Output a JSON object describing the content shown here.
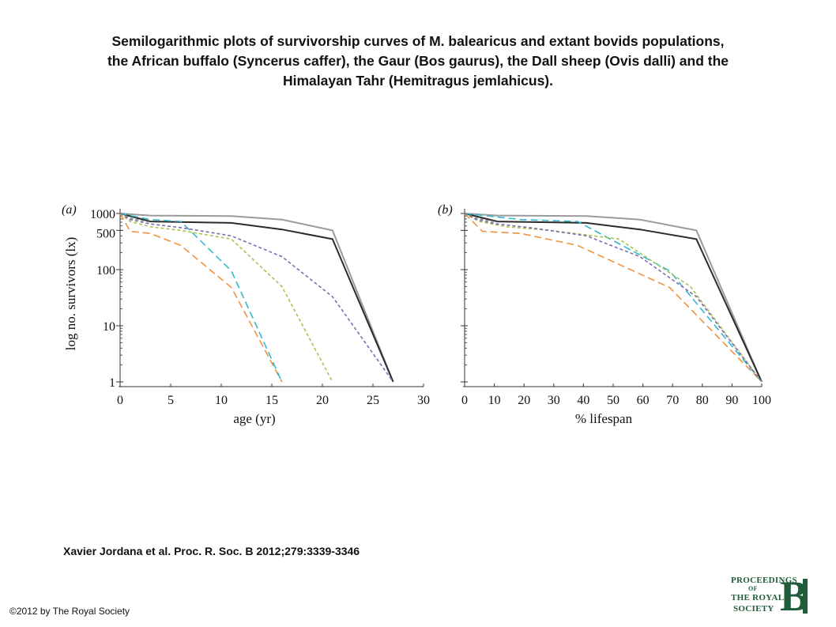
{
  "title_lines": [
    "Semilogarithmic plots of survivorship curves of M. balearicus and extant bovids populations,",
    "the African buffalo (Syncerus caffer), the Gaur (Bos gaurus), the Dall sheep (Ovis dalli) and the",
    "Himalayan Tahr (Hemitragus jemlahicus)."
  ],
  "citation": "Xavier Jordana et al. Proc. R. Soc. B 2012;279:3339-3346",
  "copyright": "©2012 by The Royal Society",
  "logo": {
    "line1": "PROCEEDINGS",
    "line2": "OF",
    "line3": "THE ROYAL",
    "line4": "SOCIETY",
    "letter": "B"
  },
  "colors": {
    "gray": "#9a9a9a",
    "black": "#2b2b2b",
    "orange": "#f0923f",
    "cyan": "#33b8d0",
    "green": "#a6c34f",
    "purple": "#7d6eae",
    "gray_dashed": "#8a8a8a",
    "axis": "#333333"
  },
  "chart_data": [
    {
      "type": "line",
      "panel_label": "(a)",
      "xlabel": "age (yr)",
      "ylabel": "log no. survivors (lx)",
      "xlim": [
        0,
        30
      ],
      "ylim": [
        1,
        1000
      ],
      "yscale": "log",
      "x_ticks": [
        0,
        5,
        10,
        15,
        20,
        25,
        30
      ],
      "x_tick_labels": [
        "0",
        "5",
        "10",
        "15",
        "20",
        "25",
        "30"
      ],
      "y_ticks": [
        1,
        10,
        100,
        500,
        1000
      ],
      "y_tick_labels": [
        "1",
        "10",
        "100",
        "500",
        "1000"
      ],
      "series": [
        {
          "color_key": "gray",
          "dash": "solid",
          "x": [
            0,
            3,
            11,
            16,
            21,
            27
          ],
          "y": [
            1000,
            920,
            900,
            780,
            500,
            1
          ]
        },
        {
          "color_key": "black",
          "dash": "solid",
          "x": [
            0,
            3,
            11,
            16,
            21,
            27
          ],
          "y": [
            1000,
            720,
            680,
            520,
            350,
            1
          ]
        },
        {
          "color_key": "orange",
          "dash": "dashed",
          "x": [
            0,
            1,
            3,
            6,
            11,
            16
          ],
          "y": [
            1000,
            480,
            440,
            270,
            48,
            1
          ]
        },
        {
          "color_key": "cyan",
          "dash": "dashed",
          "x": [
            0,
            3,
            6,
            11,
            16
          ],
          "y": [
            1000,
            780,
            720,
            95,
            1
          ]
        },
        {
          "color_key": "green",
          "dash": "dotted",
          "x": [
            0,
            1,
            3,
            6,
            11,
            16,
            21
          ],
          "y": [
            1000,
            720,
            580,
            500,
            350,
            50,
            1
          ]
        },
        {
          "color_key": "purple",
          "dash": "dotted",
          "x": [
            0,
            1,
            3,
            6,
            11,
            16,
            21,
            27
          ],
          "y": [
            1000,
            780,
            650,
            560,
            400,
            170,
            33,
            1
          ]
        },
        {
          "color_key": "gray_dashed",
          "dash": "dotted",
          "x": [
            0,
            1,
            3
          ],
          "y": [
            1000,
            820,
            700
          ]
        }
      ]
    },
    {
      "type": "line",
      "panel_label": "(b)",
      "xlabel": "% lifespan",
      "ylabel": "",
      "xlim": [
        0,
        100
      ],
      "ylim": [
        1,
        1000
      ],
      "yscale": "log",
      "x_ticks": [
        0,
        10,
        20,
        30,
        40,
        50,
        60,
        70,
        80,
        90,
        100
      ],
      "x_tick_labels": [
        "0",
        "10",
        "20",
        "30",
        "40",
        "50",
        "60",
        "70",
        "80",
        "90",
        "100"
      ],
      "y_ticks": [
        1,
        10,
        100,
        500,
        1000
      ],
      "y_tick_labels": [
        "",
        "",
        "",
        "",
        ""
      ],
      "series": [
        {
          "color_key": "gray",
          "dash": "solid",
          "x": [
            0,
            11,
            41,
            59,
            78,
            100
          ],
          "y": [
            1000,
            920,
            900,
            780,
            500,
            1
          ]
        },
        {
          "color_key": "black",
          "dash": "solid",
          "x": [
            0,
            11,
            41,
            59,
            78,
            100
          ],
          "y": [
            1000,
            720,
            680,
            520,
            350,
            1
          ]
        },
        {
          "color_key": "orange",
          "dash": "dashed",
          "x": [
            0,
            6,
            19,
            38,
            69,
            100
          ],
          "y": [
            1000,
            480,
            440,
            270,
            48,
            1
          ]
        },
        {
          "color_key": "cyan",
          "dash": "dashed",
          "x": [
            0,
            19,
            38,
            69,
            100
          ],
          "y": [
            1000,
            780,
            720,
            95,
            1
          ]
        },
        {
          "color_key": "green",
          "dash": "dotted",
          "x": [
            0,
            5,
            14,
            29,
            52,
            76,
            100
          ],
          "y": [
            1000,
            720,
            580,
            500,
            350,
            50,
            1
          ]
        },
        {
          "color_key": "purple",
          "dash": "dotted",
          "x": [
            0,
            4,
            11,
            22,
            41,
            59,
            78,
            100
          ],
          "y": [
            1000,
            780,
            650,
            560,
            400,
            170,
            33,
            1
          ]
        },
        {
          "color_key": "gray_dashed",
          "dash": "dotted",
          "x": [
            0,
            4,
            11
          ],
          "y": [
            1000,
            820,
            700
          ]
        }
      ]
    }
  ]
}
